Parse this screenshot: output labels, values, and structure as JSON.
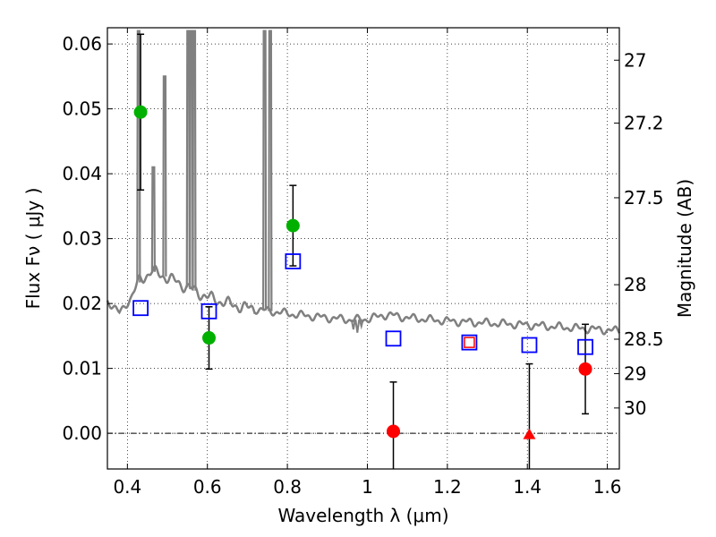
{
  "chart_data": {
    "type": "scatter",
    "xlabel": "Wavelength  λ (μm)",
    "ylabel": "Flux  Fν  ( μJy )",
    "ylabel_right": "Magnitude (AB)",
    "xlim": [
      0.35,
      1.63
    ],
    "ylim": [
      -0.0055,
      0.0625
    ],
    "x_ticks": [
      0.4,
      0.6,
      0.8,
      1.0,
      1.2,
      1.4,
      1.6
    ],
    "x_tick_labels": [
      "0.4",
      "0.6",
      "0.8",
      "1",
      "1.2",
      "1.4",
      "1.6"
    ],
    "y_ticks": [
      0.0,
      0.01,
      0.02,
      0.03,
      0.04,
      0.05,
      0.06
    ],
    "y_tick_labels": [
      "0.00",
      "0.01",
      "0.02",
      "0.03",
      "0.04",
      "0.05",
      "0.06"
    ],
    "right_ticks": [
      {
        "label": "27",
        "flux": 0.0575
      },
      {
        "label": "27.2",
        "flux": 0.0478
      },
      {
        "label": "27.5",
        "flux": 0.0363
      },
      {
        "label": "28",
        "flux": 0.0229
      },
      {
        "label": "28.5",
        "flux": 0.0145
      },
      {
        "label": "29",
        "flux": 0.0092
      },
      {
        "label": "30",
        "flux": 0.0039
      }
    ],
    "grid": true,
    "zero_line": true,
    "model_spectrum": {
      "color": "#808080",
      "continuum": [
        [
          0.35,
          0.0205
        ],
        [
          0.38,
          0.0185
        ],
        [
          0.41,
          0.021
        ],
        [
          0.43,
          0.0235
        ],
        [
          0.46,
          0.025
        ],
        [
          0.5,
          0.024
        ],
        [
          0.55,
          0.0225
        ],
        [
          0.6,
          0.021
        ],
        [
          0.65,
          0.02
        ],
        [
          0.7,
          0.0193
        ],
        [
          0.76,
          0.0188
        ],
        [
          0.82,
          0.0183
        ],
        [
          0.9,
          0.0178
        ],
        [
          0.96,
          0.0175
        ],
        [
          1.0,
          0.0176
        ],
        [
          1.05,
          0.0183
        ],
        [
          1.1,
          0.0178
        ],
        [
          1.2,
          0.0173
        ],
        [
          1.3,
          0.017
        ],
        [
          1.4,
          0.0167
        ],
        [
          1.5,
          0.0163
        ],
        [
          1.63,
          0.0158
        ]
      ],
      "emission_lines": [
        {
          "x": 0.428,
          "peak": 0.062
        },
        {
          "x": 0.465,
          "peak": 0.041
        },
        {
          "x": 0.493,
          "peak": 0.055
        },
        {
          "x": 0.552,
          "peak": 0.062
        },
        {
          "x": 0.56,
          "peak": 0.062
        },
        {
          "x": 0.567,
          "peak": 0.062
        },
        {
          "x": 0.743,
          "peak": 0.062
        },
        {
          "x": 0.757,
          "peak": 0.062
        }
      ],
      "absorption_features": [
        {
          "x": 0.965,
          "depth": 0.016
        },
        {
          "x": 0.975,
          "depth": 0.0155
        },
        {
          "x": 0.985,
          "depth": 0.0165
        }
      ]
    },
    "series": [
      {
        "marker": "circle",
        "color": "#00b000",
        "points": [
          {
            "x": 0.433,
            "y": 0.0495,
            "err": 0.012
          },
          {
            "x": 0.604,
            "y": 0.0147,
            "err": 0.0048
          },
          {
            "x": 0.814,
            "y": 0.032,
            "err": 0.0062
          }
        ]
      },
      {
        "marker": "circle",
        "color": "#ff0000",
        "points": [
          {
            "x": 1.065,
            "y": 0.0003,
            "err": 0.0076
          },
          {
            "x": 1.545,
            "y": 0.0099,
            "err": 0.0069
          }
        ]
      },
      {
        "marker": "triangle",
        "color": "#ff0000",
        "points": [
          {
            "x": 1.405,
            "y": -0.0002,
            "err": 0.0109
          }
        ]
      },
      {
        "marker": "square-open",
        "color": "#0000ff",
        "points": [
          {
            "x": 0.433,
            "y": 0.0193
          },
          {
            "x": 0.604,
            "y": 0.0188
          },
          {
            "x": 0.814,
            "y": 0.0265
          },
          {
            "x": 1.065,
            "y": 0.0146
          },
          {
            "x": 1.255,
            "y": 0.014
          },
          {
            "x": 1.405,
            "y": 0.0136
          },
          {
            "x": 1.545,
            "y": 0.0133
          }
        ]
      },
      {
        "marker": "square-open-small",
        "color": "#ff0000",
        "points": [
          {
            "x": 1.255,
            "y": 0.014
          }
        ]
      }
    ]
  }
}
